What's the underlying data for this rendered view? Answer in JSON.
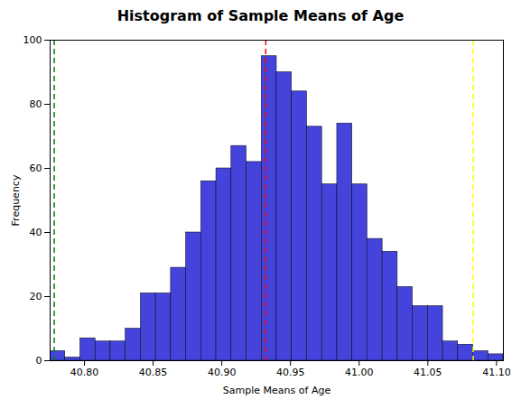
{
  "chart_data": {
    "type": "histogram",
    "title": "Histogram of Sample Means of Age",
    "xlabel": "Sample Means of Age",
    "ylabel": "Frequency",
    "bins": [
      40.775,
      40.786,
      40.797,
      40.808,
      40.819,
      40.83,
      40.841,
      40.852,
      40.863,
      40.874,
      40.885,
      40.896,
      40.907,
      40.918,
      40.929,
      40.94,
      40.951,
      40.962,
      40.973,
      40.984,
      40.995,
      41.006,
      41.017,
      41.028,
      41.039,
      41.05,
      41.061,
      41.072,
      41.083,
      41.094,
      41.105
    ],
    "values": [
      3,
      1,
      7,
      6,
      6,
      10,
      21,
      21,
      29,
      40,
      56,
      60,
      67,
      62,
      95,
      90,
      84,
      73,
      55,
      74,
      55,
      38,
      34,
      23,
      17,
      17,
      6,
      5,
      3,
      2
    ],
    "color": "#4444dd",
    "vertical_lines": [
      {
        "x": 40.778,
        "color": "green",
        "line_style": "dashed"
      },
      {
        "x": 40.932,
        "color": "red",
        "line_style": "dashed"
      },
      {
        "x": 41.083,
        "color": "yellow",
        "line_style": "dashed"
      }
    ],
    "xlim": [
      40.775,
      41.105
    ],
    "xticks": [
      {
        "value": 40.8,
        "label": "40.80"
      },
      {
        "value": 40.85,
        "label": "40.85"
      },
      {
        "value": 40.9,
        "label": "40.90"
      },
      {
        "value": 40.95,
        "label": "40.95"
      },
      {
        "value": 41.0,
        "label": "41.00"
      },
      {
        "value": 41.05,
        "label": "41.05"
      },
      {
        "value": 41.1,
        "label": "41.10"
      }
    ],
    "ylim": [
      0,
      100
    ],
    "yticks": [
      0,
      20,
      40,
      60,
      80,
      100
    ],
    "grid": false
  }
}
